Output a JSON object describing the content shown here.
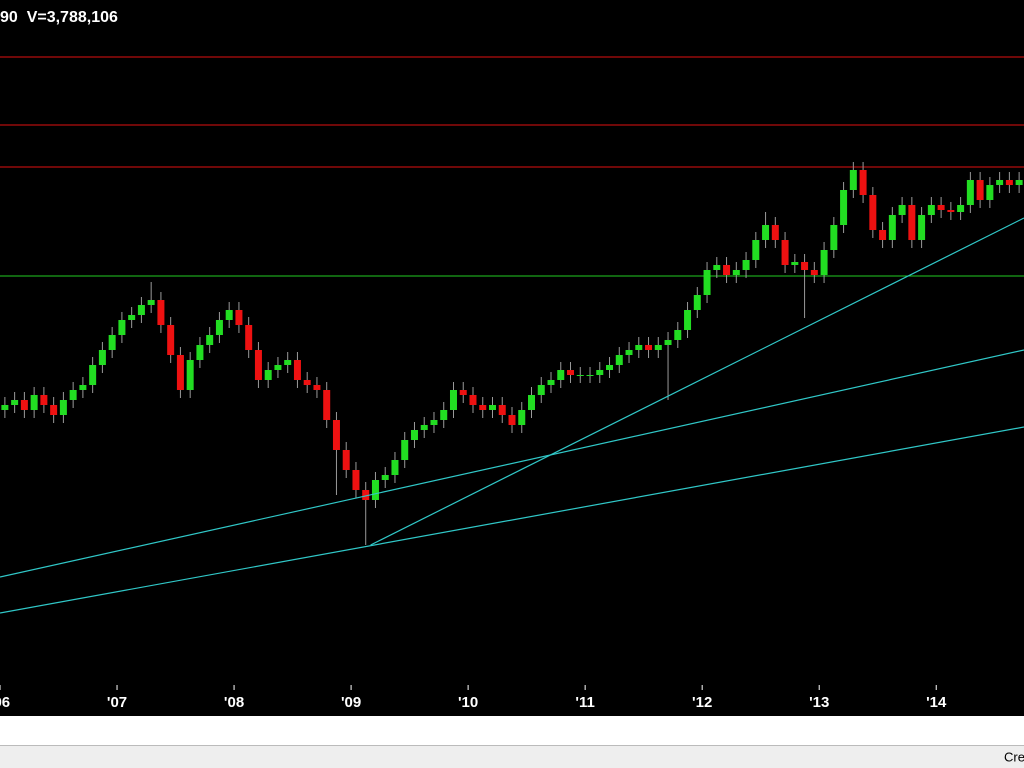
{
  "chart_data": {
    "type": "candlestick",
    "header": "90  V=3,788,106",
    "footer": "Cre",
    "categories": [
      null,
      null,
      null,
      null,
      null,
      null,
      null,
      null,
      null,
      null,
      null,
      null,
      null,
      null,
      null,
      null,
      null,
      null,
      null,
      null,
      null,
      null,
      null,
      null,
      null,
      null,
      null,
      null,
      null,
      null,
      null,
      null,
      null,
      null,
      null,
      null,
      null,
      null,
      null,
      null,
      null,
      null,
      null,
      null,
      null,
      null,
      null,
      null,
      null,
      null,
      null,
      null,
      null,
      null,
      null,
      null,
      null,
      null,
      null,
      null,
      null,
      null,
      null,
      null,
      null,
      null,
      null,
      null,
      null,
      null,
      null,
      null,
      null,
      null,
      null,
      null,
      null,
      null,
      null,
      null,
      null,
      null,
      null,
      null,
      null,
      null,
      null,
      null,
      null,
      null,
      null,
      null,
      null,
      null,
      null,
      null,
      null,
      null,
      null,
      null,
      null,
      null,
      null,
      null,
      null
    ],
    "open": [
      275,
      280,
      285,
      275,
      290,
      280,
      270,
      285,
      295,
      300,
      320,
      335,
      350,
      365,
      370,
      380,
      385,
      360,
      330,
      295,
      325,
      340,
      350,
      365,
      375,
      360,
      335,
      305,
      315,
      320,
      325,
      305,
      300,
      295,
      265,
      235,
      215,
      195,
      185,
      205,
      210,
      225,
      245,
      255,
      260,
      265,
      275,
      295,
      290,
      280,
      275,
      280,
      270,
      260,
      275,
      290,
      300,
      305,
      315,
      310,
      310,
      310,
      315,
      320,
      330,
      335,
      340,
      335,
      340,
      345,
      355,
      375,
      390,
      415,
      420,
      410,
      415,
      425,
      445,
      460,
      445,
      420,
      423,
      415,
      410,
      435,
      460,
      495,
      515,
      490,
      455,
      445,
      470,
      480,
      445,
      470,
      480,
      475,
      473,
      480,
      505,
      485,
      500,
      505,
      500
    ],
    "high": [
      288,
      293,
      293,
      298,
      298,
      288,
      293,
      303,
      308,
      328,
      343,
      358,
      373,
      378,
      388,
      403,
      393,
      368,
      338,
      333,
      348,
      358,
      373,
      383,
      383,
      368,
      343,
      323,
      328,
      333,
      333,
      313,
      308,
      303,
      273,
      243,
      223,
      203,
      213,
      218,
      233,
      253,
      263,
      268,
      273,
      283,
      303,
      303,
      298,
      288,
      288,
      288,
      278,
      283,
      298,
      308,
      313,
      323,
      323,
      318,
      318,
      323,
      328,
      338,
      343,
      348,
      348,
      348,
      353,
      363,
      383,
      398,
      423,
      428,
      428,
      423,
      433,
      453,
      473,
      468,
      453,
      431,
      431,
      423,
      443,
      468,
      503,
      523,
      523,
      498,
      463,
      478,
      488,
      488,
      478,
      488,
      488,
      483,
      488,
      513,
      513,
      508,
      513,
      513,
      513
    ],
    "low": [
      267,
      272,
      267,
      267,
      272,
      262,
      262,
      277,
      287,
      292,
      312,
      327,
      342,
      357,
      362,
      372,
      352,
      322,
      287,
      287,
      317,
      332,
      342,
      357,
      352,
      327,
      297,
      297,
      307,
      312,
      297,
      292,
      287,
      257,
      190,
      207,
      187,
      140,
      177,
      197,
      202,
      217,
      237,
      247,
      252,
      257,
      267,
      282,
      272,
      267,
      267,
      262,
      252,
      252,
      267,
      282,
      292,
      297,
      302,
      302,
      302,
      302,
      307,
      312,
      322,
      327,
      327,
      327,
      285,
      337,
      347,
      367,
      382,
      407,
      402,
      402,
      407,
      417,
      437,
      437,
      412,
      412,
      367,
      402,
      402,
      427,
      452,
      487,
      482,
      447,
      437,
      437,
      462,
      437,
      437,
      462,
      467,
      465,
      465,
      472,
      477,
      477,
      492,
      492,
      492
    ],
    "close": [
      280,
      285,
      275,
      290,
      280,
      270,
      285,
      295,
      300,
      320,
      335,
      350,
      365,
      370,
      380,
      385,
      360,
      330,
      295,
      325,
      340,
      350,
      365,
      375,
      360,
      335,
      305,
      315,
      320,
      325,
      305,
      300,
      295,
      265,
      235,
      215,
      195,
      185,
      205,
      210,
      225,
      245,
      255,
      260,
      265,
      275,
      295,
      290,
      280,
      275,
      280,
      270,
      260,
      275,
      290,
      300,
      305,
      315,
      310,
      310,
      310,
      315,
      320,
      330,
      335,
      340,
      335,
      340,
      345,
      355,
      375,
      390,
      415,
      420,
      410,
      415,
      425,
      445,
      460,
      445,
      420,
      423,
      415,
      410,
      435,
      460,
      495,
      515,
      490,
      455,
      445,
      470,
      480,
      445,
      470,
      480,
      475,
      473,
      480,
      505,
      485,
      500,
      505,
      500,
      505
    ],
    "up_color": "#22dd22",
    "down_color": "#ee1111",
    "wick_color": "#9a9a9a",
    "ylim": [
      0,
      685
    ],
    "xticks": [
      {
        "value": 0,
        "label": "'06"
      },
      {
        "value": 12,
        "label": "'07"
      },
      {
        "value": 24,
        "label": "'08"
      },
      {
        "value": 36,
        "label": "'09"
      },
      {
        "value": 48,
        "label": "'10"
      },
      {
        "value": 60,
        "label": "'11"
      },
      {
        "value": 72,
        "label": "'12"
      },
      {
        "value": 84,
        "label": "'13"
      },
      {
        "value": 96,
        "label": "'14"
      }
    ],
    "hlines": [
      {
        "value": 628,
        "color": "#e01010"
      },
      {
        "value": 560,
        "color": "#e01010"
      },
      {
        "value": 518,
        "color": "#e01010"
      },
      {
        "value": 409,
        "color": "#22cc22"
      }
    ],
    "trendlines": [
      {
        "color": "#30c8c8",
        "x": [
          0,
          105
        ],
        "y": [
          108,
          335
        ]
      },
      {
        "color": "#30c8c8",
        "x": [
          0,
          105
        ],
        "y": [
          72,
          258
        ]
      },
      {
        "color": "#30c8c8",
        "x": [
          38,
          105
        ],
        "y": [
          140,
          467
        ]
      }
    ]
  }
}
